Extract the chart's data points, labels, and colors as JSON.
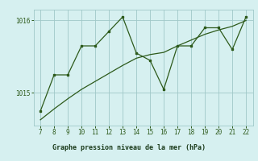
{
  "x": [
    7,
    8,
    9,
    10,
    11,
    12,
    13,
    14,
    15,
    16,
    17,
    18,
    19,
    20,
    21,
    22
  ],
  "y_actual": [
    1014.75,
    1015.25,
    1015.25,
    1015.65,
    1015.65,
    1015.85,
    1016.05,
    1015.55,
    1015.45,
    1015.05,
    1015.65,
    1015.65,
    1015.9,
    1015.9,
    1015.6,
    1016.05
  ],
  "y_trend": [
    1014.63,
    1014.78,
    1014.92,
    1015.05,
    1015.16,
    1015.27,
    1015.38,
    1015.48,
    1015.53,
    1015.56,
    1015.65,
    1015.73,
    1015.81,
    1015.87,
    1015.92,
    1016.0
  ],
  "line_color": "#2d5a1b",
  "bg_color": "#cce8e8",
  "plot_bg": "#d6f0f0",
  "grid_color": "#a0c8c8",
  "xlabel": "Graphe pression niveau de la mer (hPa)",
  "xlabel_bg": "#6aaa6a",
  "ylim": [
    1014.55,
    1016.15
  ],
  "yticks": [
    1015,
    1016
  ],
  "xlim": [
    6.5,
    22.5
  ],
  "xticks": [
    7,
    8,
    9,
    10,
    11,
    12,
    13,
    14,
    15,
    16,
    17,
    18,
    19,
    20,
    21,
    22
  ]
}
